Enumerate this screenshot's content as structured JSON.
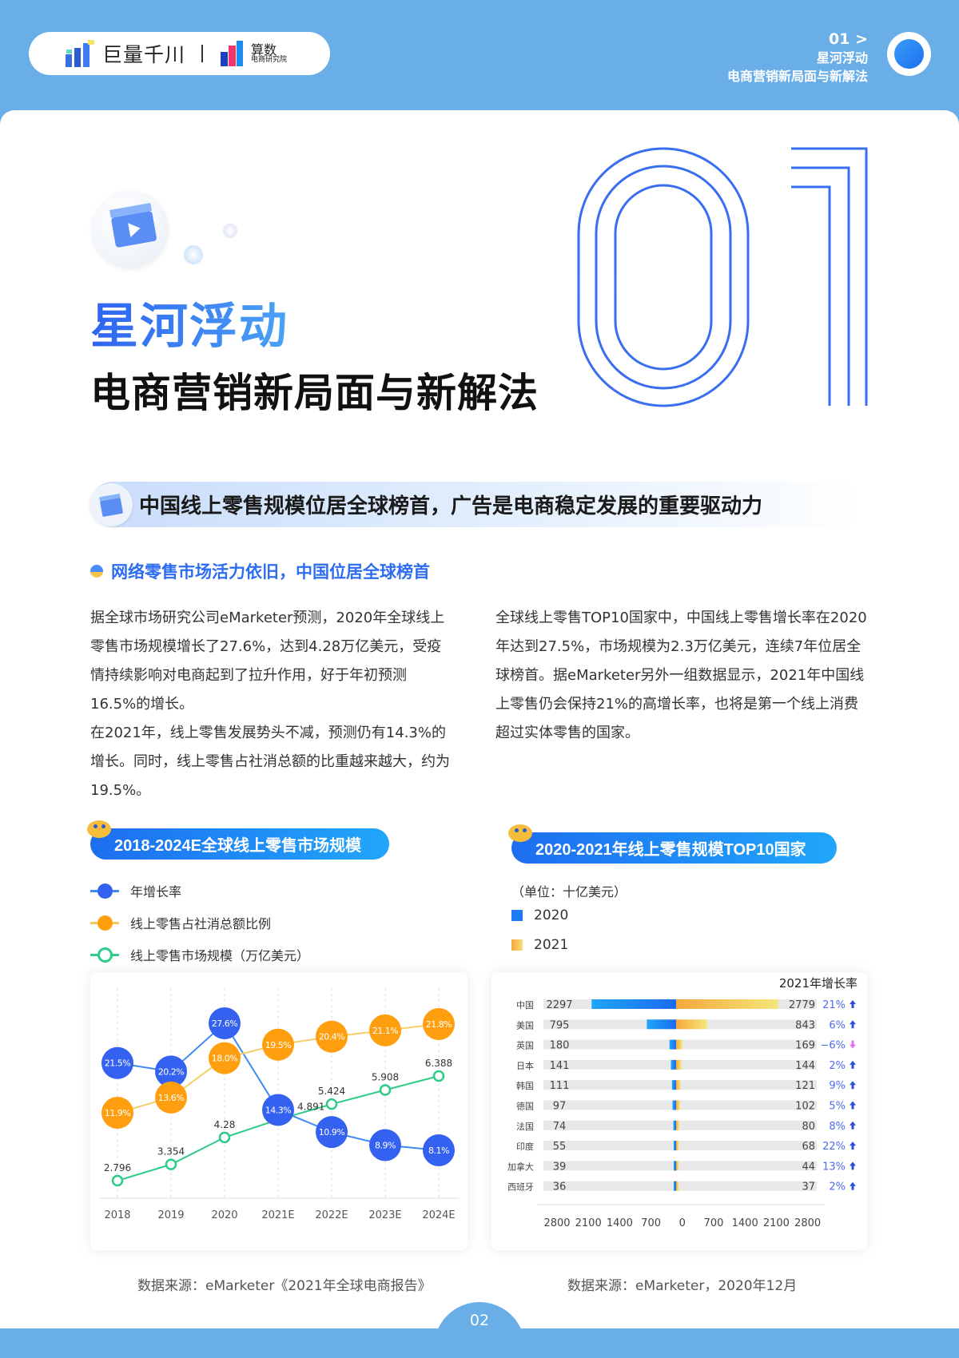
{
  "header": {
    "brand1": "巨量千川",
    "brand2_main": "算数",
    "brand2_sub": "电商研究院",
    "chapter": "01 >",
    "chapter_title": "星河浮动",
    "chapter_subtitle": "电商营销新局面与新解法"
  },
  "hero": {
    "big_number": "01",
    "title": "星河浮动",
    "subtitle": "电商营销新局面与新解法"
  },
  "section": {
    "banner": "中国线上零售规模位居全球榜首，广告是电商稳定发展的重要驱动力",
    "subheading": "网络零售市场活力依旧，中国位居全球榜首"
  },
  "paragraphs": {
    "left_1": "据全球市场研究公司eMarketer预测，2020年全球线上零售市场规模增长了27.6%，达到4.28万亿美元，受疫情持续影响对电商起到了拉升作用，好于年初预测16.5%的增长。",
    "left_2": "在2021年，线上零售发展势头不减，预测仍有14.3%的增长。同时，线上零售占社消总额的比重越来越大，约为19.5%。",
    "right_1": "全球线上零售TOP10国家中，中国线上零售增长率在2020年达到27.5%，市场规模为2.3万亿美元，连续7年位居全球榜首。据eMarketer另外一组数据显示，2021年中国线上零售仍会保持21%的高增长率，也将是第一个线上消费超过实体零售的国家。"
  },
  "chart_data": [
    {
      "type": "line",
      "title": "2018-2024E全球线上零售市场规模",
      "categories": [
        "2018",
        "2019",
        "2020",
        "2021E",
        "2022E",
        "2023E",
        "2024E"
      ],
      "grid": "vertical-dashed",
      "legend_position": "top-left",
      "series": [
        {
          "name": "年增长率",
          "color": "#3461f0",
          "unit": "%",
          "values": [
            21.5,
            20.2,
            27.6,
            14.3,
            10.9,
            8.9,
            8.1
          ],
          "labels": [
            "21.5%",
            "20.2%",
            "27.6%",
            "14.3%",
            "10.9%",
            "8.9%",
            "8.1%"
          ]
        },
        {
          "name": "线上零售占社消总额比例",
          "color": "#ff9f10",
          "unit": "%",
          "values": [
            11.9,
            13.6,
            18.0,
            19.5,
            20.4,
            21.1,
            21.8
          ],
          "labels": [
            "11.9%",
            "13.6%",
            "18.0%",
            "19.5%",
            "20.4%",
            "21.1%",
            "21.8%"
          ]
        },
        {
          "name": "线上零售市场规模（万亿美元）",
          "color": "#2dcb85",
          "values": [
            2.796,
            3.354,
            4.28,
            4.891,
            5.424,
            5.908,
            6.388
          ],
          "labels": [
            "2.796",
            "3.354",
            "4.28",
            "4.891",
            "5.424",
            "5.908",
            "6.388"
          ]
        }
      ],
      "source": "数据来源：eMarketer《2021年全球电商报告》"
    },
    {
      "type": "bar",
      "orientation": "horizontal-butterfly",
      "title": "2020-2021年线上零售规模TOP10国家",
      "unit": "（单位：十亿美元）",
      "growth_header": "2021年增长率",
      "categories": [
        "中国",
        "美国",
        "英国",
        "日本",
        "韩国",
        "德国",
        "法国",
        "印度",
        "加拿大",
        "西班牙"
      ],
      "series": [
        {
          "name": "2020",
          "color": "#1d7af2",
          "values": [
            2297,
            795,
            180,
            141,
            111,
            97,
            74,
            55,
            39,
            36
          ]
        },
        {
          "name": "2021",
          "color": "#f5b040",
          "values": [
            2779,
            843,
            169,
            144,
            121,
            102,
            80,
            68,
            44,
            37
          ]
        }
      ],
      "growth": [
        "21%",
        "6%",
        "-6%",
        "2%",
        "9%",
        "5%",
        "8%",
        "22%",
        "13%",
        "2%"
      ],
      "growth_direction": [
        "up",
        "up",
        "down",
        "up",
        "up",
        "up",
        "up",
        "up",
        "up",
        "up"
      ],
      "x_ticks": [
        "2800",
        "2100",
        "1400",
        "700",
        "0",
        "700",
        "1400",
        "2100",
        "2800"
      ],
      "xlim": [
        -2800,
        2800
      ],
      "source": "数据来源：eMarketer，2020年12月"
    }
  ],
  "footer": {
    "page": "02"
  }
}
